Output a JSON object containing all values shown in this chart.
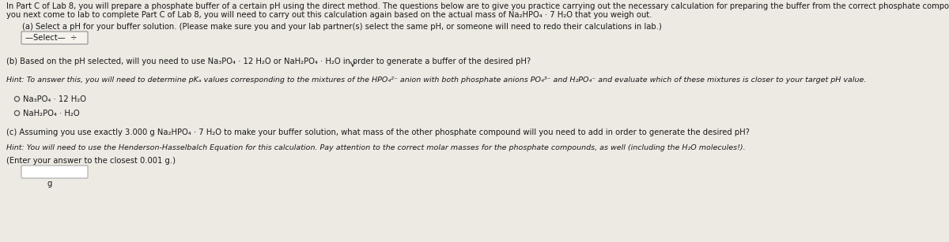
{
  "bg_color": "#ede9e3",
  "text_color": "#1a1a1a",
  "fs_body": 7.2,
  "fs_hint": 6.8,
  "intro_line1": "In Part C of Lab 8, you will prepare a phosphate buffer of a certain pH using the direct method. The questions below are to give you practice carrying out the necessary calculation for preparing the buffer from the correct phosphate compound. When",
  "intro_line2": "you next come to lab to complete Part C of Lab 8, you will need to carry out this calculation again based on the actual mass of Na₂HPO₄ · 7 H₂O that you weigh out.",
  "part_a": "(a) Select a pH for your buffer solution. (Please make sure you and your lab partner(s) select the same pH, or someone will need to redo their calculations in lab.)",
  "select_text": "—Select—  ÷",
  "part_b": "(b) Based on the pH selected, will you need to use Na₃PO₄ · 12 H₂O or NaH₂PO₄ · H₂O in order to generate a buffer of the desired pH?",
  "hint_b": "Hint: To answer this, you will need to determine pKₐ values corresponding to the mixtures of the HPO₄²⁻ anion with both phosphate anions PO₄³⁻ and H₂PO₄⁻ and evaluate which of these mixtures is closer to your target pH value.",
  "radio1": "Na₃PO₄ · 12 H₂O",
  "radio2": "NaH₂PO₄ · H₂O",
  "part_c": "(c) Assuming you use exactly 3.000 g Na₂HPO₄ · 7 H₂O to make your buffer solution, what mass of the other phosphate compound will you need to add in order to generate the desired pH?",
  "hint_c": "Hint: You will need to use the Henderson-Hasselbalch Equation for this calculation. Pay attention to the correct molar masses for the phosphate compounds, as well (including the H₂O molecules!).",
  "enter_answer": "(Enter your answer to the closest 0.001 g.)",
  "g_label": "g"
}
